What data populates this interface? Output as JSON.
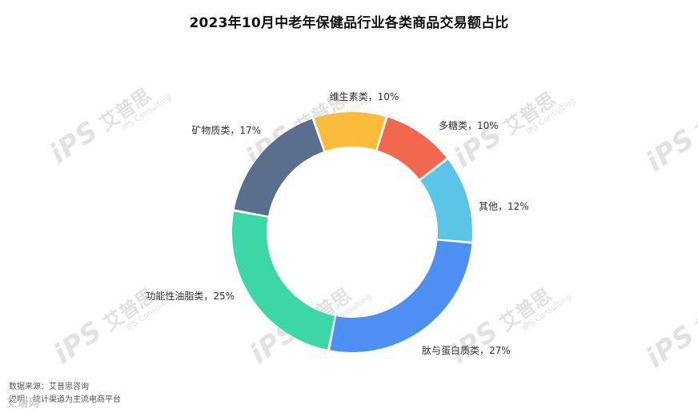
{
  "title": "2023年10月中老年保健品行业各类商品交易额占比",
  "chart_data": {
    "type": "pie",
    "donut": true,
    "title": "2023年10月中老年保健品行业各类商品交易额占比",
    "slices": [
      {
        "label": "维生素类",
        "value": 10,
        "display": "维生素类，10%",
        "color": "#FBBC3C"
      },
      {
        "label": "多糖类",
        "value": 10,
        "display": "多糖类，10%",
        "color": "#F1684E"
      },
      {
        "label": "其他",
        "value": 12,
        "display": "其他，12%",
        "color": "#5BC5E8"
      },
      {
        "label": "肽与蛋白质类",
        "value": 27,
        "display": "肽与蛋白质类，27%",
        "color": "#4D8FF2"
      },
      {
        "label": "功能性油脂类",
        "value": 25,
        "display": "功能性油脂类，25%",
        "color": "#3DD6A6"
      },
      {
        "label": "矿物质类",
        "value": 17,
        "display": "矿物质类，17%",
        "color": "#5A6F8E"
      }
    ]
  },
  "watermark": {
    "logo": "iPS",
    "cn": "艾普思",
    "en": "IPS Consulting"
  },
  "footer": {
    "source": "数据来源：艾普思咨询",
    "note": "说明：统计渠道为主流电商平台",
    "overlay": "艾瑞网"
  }
}
